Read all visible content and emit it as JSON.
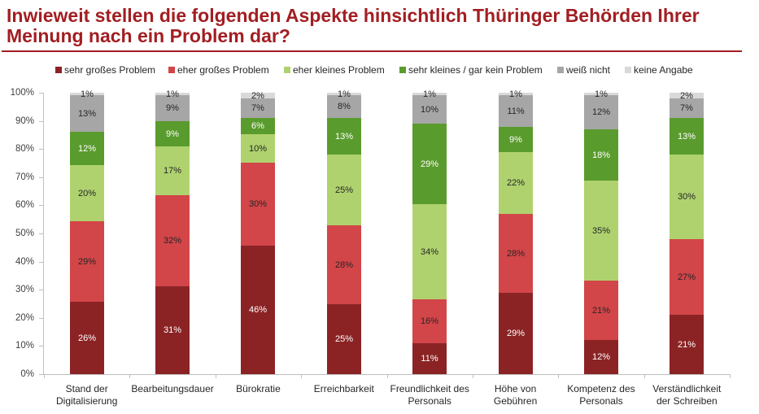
{
  "theme": {
    "accent": "#A21E22"
  },
  "title": "Inwieweit stellen die folgenden Aspekte hinsichtlich Thüringer Behörden Ihrer Meinung nach ein Problem dar?",
  "chart_data": {
    "type": "bar",
    "stacked": true,
    "orientation": "vertical",
    "categories": [
      "Stand der Digitalisierung",
      "Bearbeitungsdauer",
      "Bürokratie",
      "Erreichbarkeit",
      "Freundlichkeit des Personals",
      "Höhe von Gebühren",
      "Kompetenz des Personals",
      "Verständlichkeit der Schreiben"
    ],
    "series": [
      {
        "name": "sehr großes Problem",
        "color": "#8B2325",
        "values": [
          26,
          31,
          46,
          25,
          11,
          29,
          12,
          21
        ]
      },
      {
        "name": "eher großes Problem",
        "color": "#D24548",
        "values": [
          29,
          32,
          30,
          28,
          16,
          28,
          21,
          27
        ]
      },
      {
        "name": "eher kleines Problem",
        "color": "#AFD26E",
        "values": [
          20,
          17,
          10,
          25,
          34,
          22,
          35,
          30
        ]
      },
      {
        "name": "sehr kleines / gar kein Problem",
        "color": "#5A9B2D",
        "values": [
          12,
          9,
          6,
          13,
          29,
          9,
          18,
          13
        ]
      },
      {
        "name": "weiß nicht",
        "color": "#A6A6A6",
        "values": [
          13,
          9,
          7,
          8,
          10,
          11,
          12,
          7
        ]
      },
      {
        "name": "keine Angabe",
        "color": "#D9D9D9",
        "values": [
          1,
          1,
          2,
          1,
          1,
          1,
          1,
          2
        ]
      }
    ],
    "value_suffix": "%",
    "ylim": [
      0,
      100
    ],
    "ytick_labels": [
      "0%",
      "10%",
      "20%",
      "30%",
      "40%",
      "50%",
      "60%",
      "70%",
      "80%",
      "90%",
      "100%"
    ],
    "legend": "top",
    "grid": false
  }
}
